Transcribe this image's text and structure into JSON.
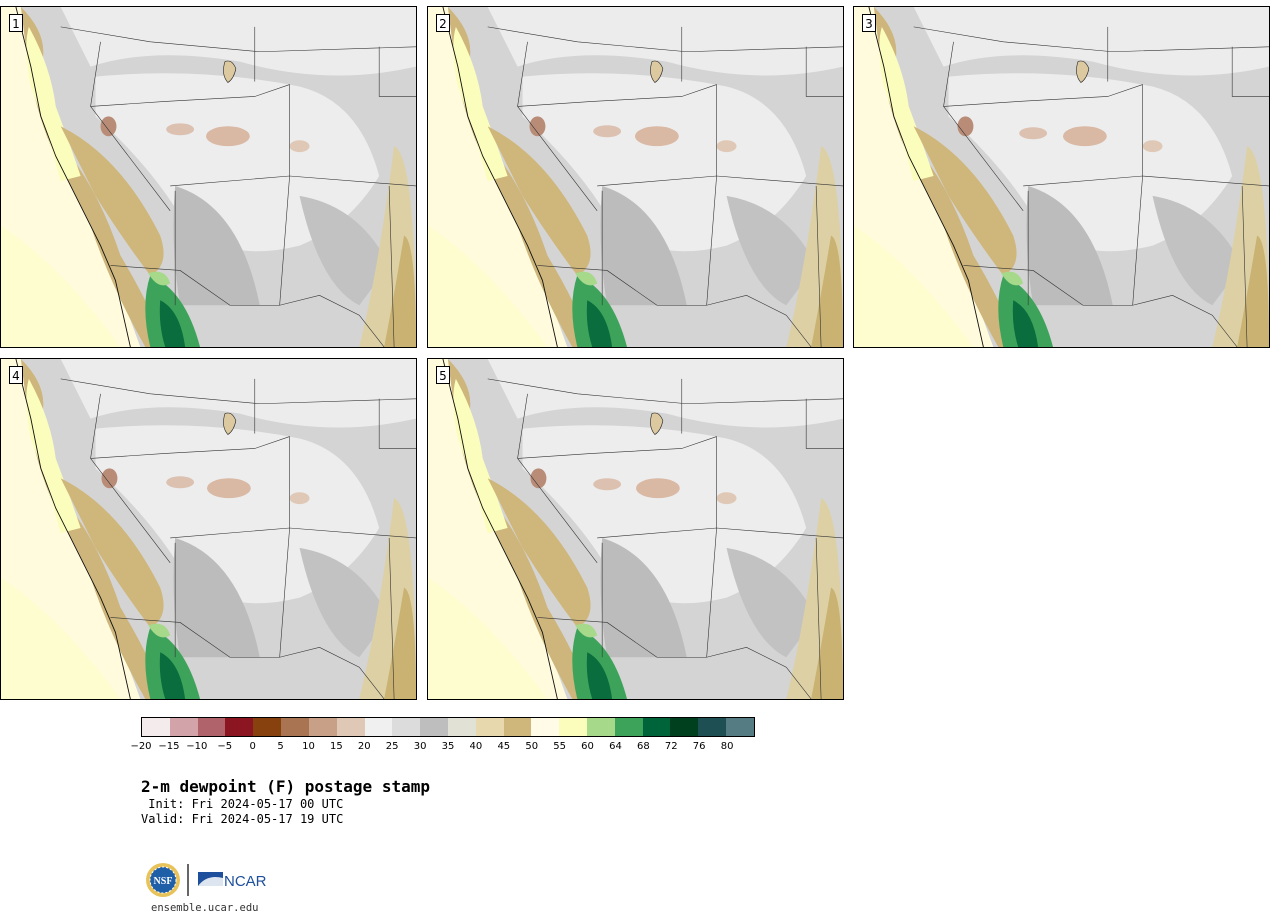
{
  "figure": {
    "title": "2-m dewpoint (F) postage stamp",
    "init_label": " Init: Fri 2024-05-17 00 UTC",
    "valid_label": "Valid: Fri 2024-05-17 19 UTC",
    "site": "ensemble.ucar.edu",
    "logos": [
      "NSF",
      "NCAR"
    ]
  },
  "panels": [
    {
      "label": "1"
    },
    {
      "label": "2"
    },
    {
      "label": "3"
    },
    {
      "label": "4"
    },
    {
      "label": "5"
    }
  ],
  "colorbar": {
    "ticks": [
      "−20",
      "−15",
      "−10",
      "−5",
      "0",
      "5",
      "10",
      "15",
      "20",
      "25",
      "30",
      "35",
      "40",
      "45",
      "50",
      "55",
      "60",
      "64",
      "68",
      "72",
      "76",
      "80"
    ],
    "colors": [
      "#f4ecec",
      "#d2a4a9",
      "#b0636b",
      "#8b1520",
      "#87410e",
      "#a87452",
      "#c8a088",
      "#e0c8b6",
      "#f0f0f0",
      "#dcdcdc",
      "#bebebe",
      "#e2e1d6",
      "#e7d9ad",
      "#cfb67a",
      "#fffbe6",
      "#fbfdbc",
      "#a6d98a",
      "#3ea35a",
      "#00643a",
      "#00401f",
      "#1e4f52",
      "#547c82"
    ]
  }
}
